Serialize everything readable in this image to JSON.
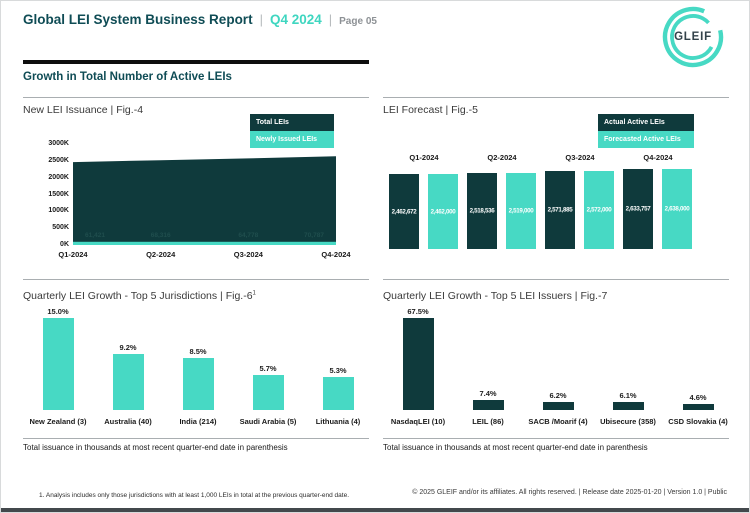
{
  "header": {
    "title": "Global LEI System Business Report",
    "sep": "|",
    "quarter": "Q4 2024",
    "page_label": "Page 05",
    "logo_text": "GLEIF",
    "section_title": "Growth in Total Number of Active LEIs"
  },
  "colors": {
    "dark-teal": "#0f3a3c",
    "teal": "#47d9c4",
    "header-teal": "#0f4c55",
    "quarter-teal": "#3fd6c0",
    "gray": "#8d9195"
  },
  "chart_data": [
    {
      "id": "fig4",
      "type": "area",
      "title": "New LEI Issuance | Fig.-4",
      "legend": [
        "Total LEIs",
        "Newly Issued LEIs"
      ],
      "legend_position": "top-right",
      "grid": false,
      "categories": [
        "Q1-2024",
        "Q2-2024",
        "Q3-2024",
        "Q4-2024"
      ],
      "series": [
        {
          "name": "Total LEIs",
          "values": [
            2462672,
            2518536,
            2571885,
            2633757
          ]
        },
        {
          "name": "Newly Issued LEIs",
          "values": [
            61421,
            68316,
            64778,
            70787
          ]
        }
      ],
      "faint_point_labels": [
        "61,421",
        "68,316",
        "64,778",
        "70,787"
      ],
      "ylim": [
        0,
        3000000
      ],
      "yticks": [
        "3000K",
        "2500K",
        "2000K",
        "1500K",
        "1000K",
        "500K",
        "0K"
      ]
    },
    {
      "id": "fig5",
      "type": "bar",
      "title": "LEI Forecast | Fig.-5",
      "legend": [
        "Actual Active LEIs",
        "Forecasted Active LEIs"
      ],
      "legend_position": "top-right",
      "grid": false,
      "categories": [
        "Q1-2024",
        "Q2-2024",
        "Q3-2024",
        "Q4-2024"
      ],
      "series": [
        {
          "name": "Actual Active LEIs",
          "values": [
            2462672,
            2518536,
            2571885,
            2633757
          ],
          "labels": [
            "2,462,672",
            "2,518,536",
            "2,571,885",
            "2,633,757"
          ]
        },
        {
          "name": "Forecasted Active LEIs",
          "values": [
            2462000,
            2519000,
            2572000,
            2638000
          ],
          "labels": [
            "2,462,000",
            "2,519,000",
            "2,572,000",
            "2,638,000"
          ]
        }
      ]
    },
    {
      "id": "fig6",
      "type": "bar",
      "title": "Quarterly LEI Growth - Top 5 Jurisdictions | Fig.-6",
      "title_sup": "1",
      "grid": false,
      "categories": [
        "New Zealand (3)",
        "Australia (40)",
        "India (214)",
        "Saudi Arabia (5)",
        "Lithuania (4)"
      ],
      "values": [
        15.0,
        9.2,
        8.5,
        5.7,
        5.3
      ],
      "labels": [
        "15.0%",
        "9.2%",
        "8.5%",
        "5.7%",
        "5.3%"
      ],
      "caption": "Total issuance in thousands at most recent quarter-end date in parenthesis"
    },
    {
      "id": "fig7",
      "type": "bar",
      "title": "Quarterly LEI Growth - Top 5 LEI Issuers | Fig.-7",
      "grid": false,
      "categories": [
        "NasdaqLEI (10)",
        "LEIL (86)",
        "SACB /Moarif (4)",
        "Ubisecure (358)",
        "CSD Slovakia (4)"
      ],
      "values": [
        67.5,
        7.4,
        6.2,
        6.1,
        4.6
      ],
      "labels": [
        "67.5%",
        "7.4%",
        "6.2%",
        "6.1%",
        "4.6%"
      ],
      "caption": "Total issuance in thousands at most recent quarter-end date in parenthesis"
    }
  ],
  "footer": {
    "footnote": "1. Analysis includes only those jurisdictions with at least 1,000 LEIs in total at the previous quarter-end date.",
    "copyright": "© 2025 GLEIF and/or its affiliates. All rights reserved. | Release date 2025-01-20 | Version 1.0 | Public"
  }
}
